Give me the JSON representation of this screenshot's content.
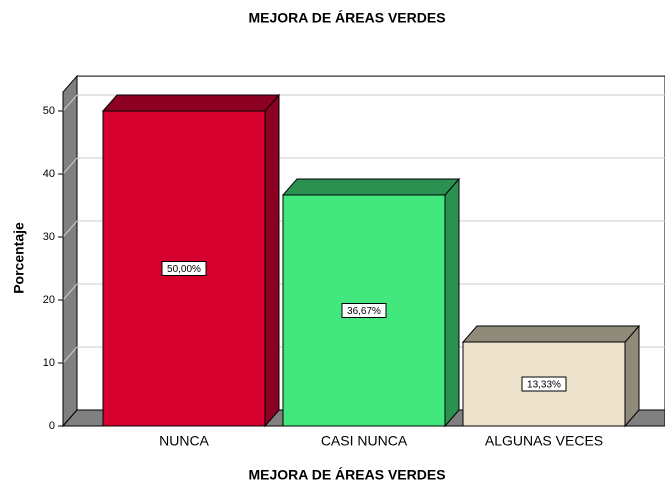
{
  "chart_data": {
    "type": "bar",
    "title": "MEJORA DE ÁREAS VERDES",
    "x_label": "MEJORA DE ÁREAS VERDES",
    "y_label": "Porcentaje",
    "categories": [
      "NUNCA",
      "CASI NUNCA",
      "ALGUNAS VECES"
    ],
    "values": [
      50,
      36.67,
      13.33
    ],
    "value_labels": [
      "50,00%",
      "36,67%",
      "13,33%"
    ],
    "colors": [
      "#d6002f",
      "#42e87e",
      "#ede3cc"
    ],
    "side_colors": [
      "#8c0022",
      "#2a9150",
      "#8f8a7a"
    ],
    "ylim": [
      0,
      53
    ],
    "yticks": [
      0,
      10,
      20,
      30,
      40,
      50
    ],
    "grid": true
  }
}
